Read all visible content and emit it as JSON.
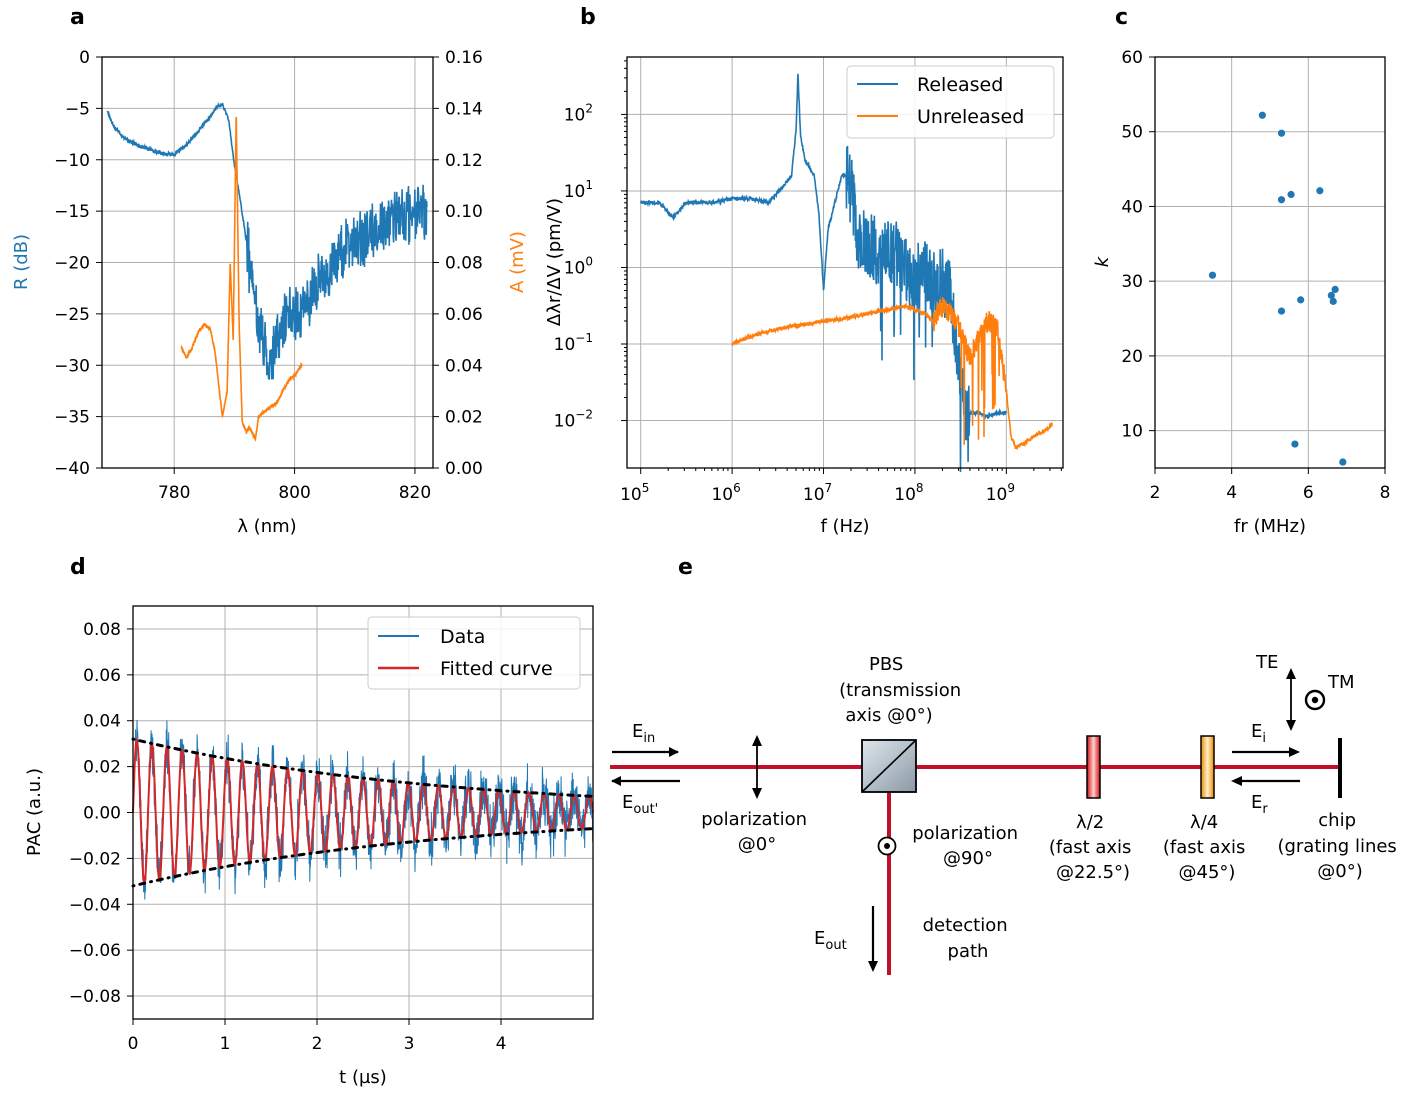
{
  "panel_labels": {
    "a": "a",
    "b": "b",
    "c": "c",
    "d": "d",
    "e": "e"
  },
  "colors": {
    "blue": "#1f77b4",
    "orange": "#ff7f0e",
    "red": "#d62728",
    "beam": "#c0102a",
    "grid": "#b0b0b0"
  },
  "chart_data": [
    {
      "id": "a",
      "type": "line",
      "xlabel": "λ (nm)",
      "ylabel_left": "R (dB)",
      "ylabel_right": "A (mV)",
      "xlim": [
        768,
        823
      ],
      "ylim_left": [
        -40,
        0
      ],
      "ylim_right": [
        0.0,
        0.16
      ],
      "xticks": [
        780,
        800,
        820
      ],
      "yticks_left": [
        0,
        -5,
        -10,
        -15,
        -20,
        -25,
        -30,
        -35,
        -40
      ],
      "yticks_right": [
        "0.16",
        "0.14",
        "0.12",
        "0.10",
        "0.08",
        "0.06",
        "0.04",
        "0.02",
        "0.00"
      ],
      "grid": true,
      "series": [
        {
          "name": "R",
          "axis": "left",
          "color": "#1f77b4",
          "x": [
            768.9,
            770,
            772,
            774,
            776,
            778,
            780,
            782,
            784,
            786,
            787,
            788,
            789,
            790,
            791,
            792,
            793,
            794,
            795,
            796,
            797,
            798,
            800,
            802,
            804,
            806,
            808,
            810,
            812,
            814,
            816,
            818,
            820,
            822
          ],
          "y": [
            -5.3,
            -6.8,
            -8,
            -8.6,
            -9,
            -9.4,
            -9.5,
            -8.6,
            -7.2,
            -5.8,
            -4.9,
            -4.6,
            -6,
            -10.5,
            -14,
            -18,
            -22,
            -26,
            -28,
            -30,
            -28,
            -26,
            -25,
            -24,
            -22,
            -20.5,
            -19,
            -18,
            -17.5,
            -16.5,
            -16,
            -15.5,
            -15,
            -15
          ],
          "noise": 2.2,
          "noise_start": 792
        },
        {
          "name": "A",
          "axis": "right",
          "color": "#ff7f0e",
          "x": [
            781.2,
            782,
            783,
            784,
            785,
            786,
            786.8,
            787.5,
            788,
            788.8,
            789.3,
            789.8,
            790.3,
            790.8,
            791.3,
            792,
            792.5,
            793.5,
            794,
            795,
            796,
            797,
            798,
            799,
            800,
            801.2
          ],
          "y": [
            0.047,
            0.043,
            0.047,
            0.053,
            0.056,
            0.054,
            0.045,
            0.03,
            0.02,
            0.03,
            0.08,
            0.05,
            0.138,
            0.055,
            0.018,
            0.014,
            0.016,
            0.011,
            0.02,
            0.022,
            0.024,
            0.025,
            0.03,
            0.034,
            0.036,
            0.04
          ],
          "noise": 0.0,
          "noise_start": 999
        }
      ]
    },
    {
      "id": "b",
      "type": "line",
      "xscale": "log",
      "yscale": "log",
      "xlabel": "f (Hz)",
      "ylabel": "Δλr/ΔV (pm/V)",
      "xlim_log10": [
        4.85,
        9.62
      ],
      "ylim_log10": [
        -2.62,
        2.75
      ],
      "xtick_exponents": [
        "5",
        "6",
        "7",
        "8",
        "9"
      ],
      "ytick_exponents": [
        "2",
        "1",
        "0",
        "−1",
        "−2"
      ],
      "tick_base": "10",
      "grid": true,
      "legend": {
        "position": "top-right",
        "entries": [
          "Released",
          "Unreleased"
        ]
      },
      "series": [
        {
          "name": "Released",
          "color": "#1f77b4",
          "log10x": [
            5.0,
            5.2,
            5.35,
            5.5,
            5.8,
            6.0,
            6.2,
            6.4,
            6.55,
            6.65,
            6.7,
            6.72,
            6.75,
            6.8,
            6.85,
            6.9,
            6.95,
            7.0,
            7.05,
            7.2,
            7.3,
            7.35,
            7.4,
            7.5,
            7.6,
            7.7,
            7.8,
            7.9,
            8.0,
            8.1,
            8.2,
            8.3,
            8.4,
            8.5,
            8.55,
            8.6,
            8.7,
            8.8,
            8.9,
            9.0
          ],
          "log10y": [
            0.85,
            0.85,
            0.65,
            0.85,
            0.85,
            0.9,
            0.9,
            0.85,
            1.05,
            1.2,
            1.8,
            2.52,
            1.7,
            1.4,
            1.3,
            1.2,
            0.7,
            -0.3,
            0.5,
            1.2,
            1.2,
            0.5,
            0.3,
            0.3,
            0.2,
            0.2,
            0.2,
            0.0,
            -0.2,
            0.1,
            -0.2,
            -0.2,
            -0.4,
            -1.4,
            -1.8,
            -1.9,
            -1.9,
            -1.95,
            -1.9,
            -1.9
          ],
          "noise": 0.45,
          "noise_start": 7.25,
          "noise_end": 8.6
        },
        {
          "name": "Unreleased",
          "color": "#ff7f0e",
          "log10x": [
            6.0,
            6.2,
            6.5,
            7.0,
            7.3,
            7.5,
            7.7,
            7.9,
            8.1,
            8.2,
            8.3,
            8.4,
            8.5,
            8.6,
            8.7,
            8.8,
            8.9,
            8.95,
            9.0,
            9.05,
            9.1,
            9.2,
            9.3,
            9.4,
            9.5
          ],
          "log10y": [
            -1.0,
            -0.9,
            -0.8,
            -0.7,
            -0.65,
            -0.6,
            -0.55,
            -0.5,
            -0.6,
            -0.7,
            -0.5,
            -0.6,
            -0.8,
            -1.2,
            -0.9,
            -0.7,
            -0.8,
            -1.2,
            -1.6,
            -2.2,
            -2.35,
            -2.3,
            -2.2,
            -2.15,
            -2.05
          ],
          "noise": 0.15,
          "noise_start": 8.2,
          "noise_end": 9.0
        }
      ]
    },
    {
      "id": "c",
      "type": "scatter",
      "xlabel": "fr (MHz)",
      "ylabel": "k",
      "xlim": [
        2,
        8
      ],
      "ylim": [
        5,
        60
      ],
      "xticks": [
        2,
        4,
        6,
        8
      ],
      "yticks": [
        60,
        50,
        40,
        30,
        20,
        10
      ],
      "grid": true,
      "x": [
        3.5,
        4.8,
        5.3,
        5.3,
        5.3,
        5.55,
        5.65,
        5.8,
        6.3,
        6.6,
        6.65,
        6.7,
        6.9
      ],
      "y": [
        30.8,
        52.2,
        49.8,
        40.9,
        26,
        41.6,
        8.2,
        27.5,
        42.1,
        28.1,
        27.3,
        28.9,
        5.8
      ]
    },
    {
      "id": "d",
      "type": "line",
      "xlabel": "t (µs)",
      "ylabel": "PAC (a.u.)",
      "xlim": [
        0,
        5.0
      ],
      "ylim": [
        -0.09,
        0.09
      ],
      "xticks": [
        0,
        1,
        2,
        3,
        4
      ],
      "yticks": [
        "0.08",
        "0.06",
        "0.04",
        "0.02",
        "0.00",
        "−0.02",
        "−0.04",
        "−0.06",
        "−0.08"
      ],
      "grid": true,
      "legend": {
        "position": "top-right",
        "entries": [
          "Data",
          "Fitted curve"
        ]
      },
      "fit": {
        "amplitude": 0.032,
        "decay_time_us": 3.3,
        "frequency_mhz": 6.1
      },
      "data_noise": 0.01
    }
  ],
  "schematic": {
    "e_in": "E",
    "e_in_sub": "in",
    "e_out_prime": "E",
    "e_out_prime_sub": "out'",
    "e_out": "E",
    "e_out_sub": "out",
    "e_i": "E",
    "e_i_sub": "i",
    "e_r": "E",
    "e_r_sub": "r",
    "te": "TE",
    "tm": "TM",
    "pbs_lines": [
      "PBS",
      "(transmission",
      "axis @0°)"
    ],
    "pol0_lines": [
      "polarization",
      "@0°"
    ],
    "pol90_lines": [
      "polarization",
      "@90°"
    ],
    "half_lines": [
      "λ/2",
      "(fast axis",
      "@22.5°)"
    ],
    "quarter_lines": [
      "λ/4",
      "(fast axis",
      "@45°)"
    ],
    "chip_lines": [
      "chip",
      "(grating lines",
      "@0°)"
    ],
    "detect_lines": [
      "detection",
      "path"
    ]
  }
}
